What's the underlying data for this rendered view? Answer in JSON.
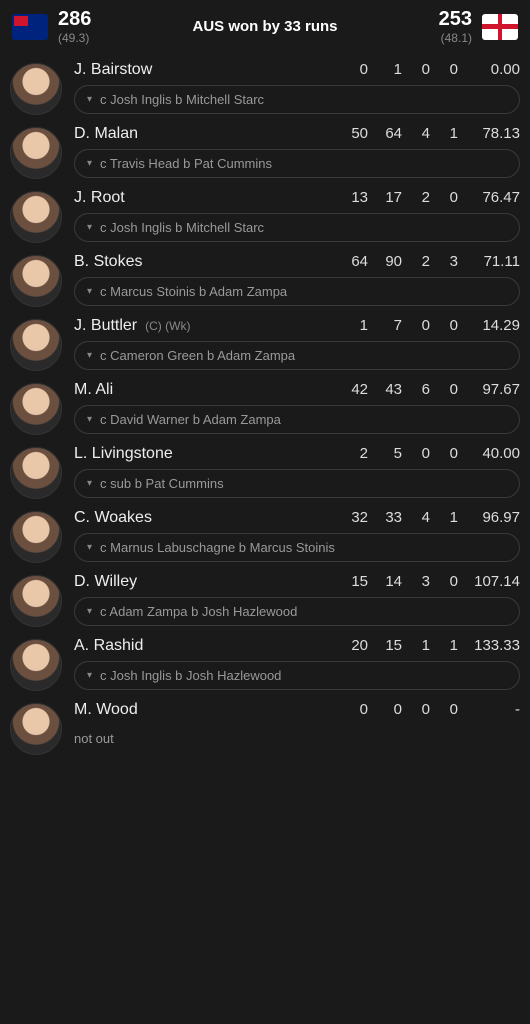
{
  "header": {
    "team1": {
      "code": "AUS",
      "score": "286",
      "overs": "(49.3)"
    },
    "team2": {
      "code": "ENG",
      "score": "253",
      "overs": "(48.1)"
    },
    "result": "AUS won by 33 runs"
  },
  "batters": [
    {
      "name": "J. Bairstow",
      "badges": "",
      "r": "0",
      "b": "1",
      "f": "0",
      "s": "0",
      "sr": "0.00",
      "dismissal": "c Josh Inglis b Mitchell Starc",
      "pill": true
    },
    {
      "name": "D. Malan",
      "badges": "",
      "r": "50",
      "b": "64",
      "f": "4",
      "s": "1",
      "sr": "78.13",
      "dismissal": "c Travis Head b Pat Cummins",
      "pill": true
    },
    {
      "name": "J. Root",
      "badges": "",
      "r": "13",
      "b": "17",
      "f": "2",
      "s": "0",
      "sr": "76.47",
      "dismissal": "c Josh Inglis b Mitchell Starc",
      "pill": true
    },
    {
      "name": "B. Stokes",
      "badges": "",
      "r": "64",
      "b": "90",
      "f": "2",
      "s": "3",
      "sr": "71.11",
      "dismissal": "c Marcus Stoinis b Adam Zampa",
      "pill": true
    },
    {
      "name": "J. Buttler",
      "badges": "(C) (Wk)",
      "r": "1",
      "b": "7",
      "f": "0",
      "s": "0",
      "sr": "14.29",
      "dismissal": "c Cameron Green b Adam Zampa",
      "pill": true
    },
    {
      "name": "M. Ali",
      "badges": "",
      "r": "42",
      "b": "43",
      "f": "6",
      "s": "0",
      "sr": "97.67",
      "dismissal": "c David Warner b Adam Zampa",
      "pill": true
    },
    {
      "name": "L. Livingstone",
      "badges": "",
      "r": "2",
      "b": "5",
      "f": "0",
      "s": "0",
      "sr": "40.00",
      "dismissal": "c sub b Pat Cummins",
      "pill": true
    },
    {
      "name": "C. Woakes",
      "badges": "",
      "r": "32",
      "b": "33",
      "f": "4",
      "s": "1",
      "sr": "96.97",
      "dismissal": "c Marnus Labuschagne b Marcus Stoinis",
      "pill": true
    },
    {
      "name": "D. Willey",
      "badges": "",
      "r": "15",
      "b": "14",
      "f": "3",
      "s": "0",
      "sr": "107.14",
      "dismissal": "c Adam Zampa b Josh Hazlewood",
      "pill": true
    },
    {
      "name": "A. Rashid",
      "badges": "",
      "r": "20",
      "b": "15",
      "f": "1",
      "s": "1",
      "sr": "133.33",
      "dismissal": "c Josh Inglis b Josh Hazlewood",
      "pill": true
    },
    {
      "name": "M. Wood",
      "badges": "",
      "r": "0",
      "b": "0",
      "f": "0",
      "s": "0",
      "sr": "-",
      "dismissal": "not out",
      "pill": false
    }
  ],
  "colors": {
    "bg": "#1a1a1a",
    "text_primary": "#eeeeee",
    "text_muted": "#888888",
    "pill_border": "#3a3a3a"
  }
}
